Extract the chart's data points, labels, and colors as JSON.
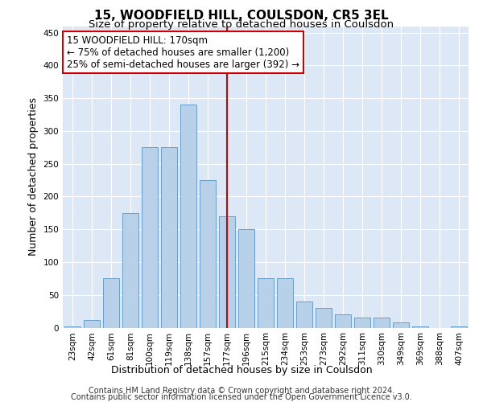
{
  "title": "15, WOODFIELD HILL, COULSDON, CR5 3EL",
  "subtitle": "Size of property relative to detached houses in Coulsdon",
  "xlabel": "Distribution of detached houses by size in Coulsdon",
  "ylabel": "Number of detached properties",
  "categories": [
    "23sqm",
    "42sqm",
    "61sqm",
    "81sqm",
    "100sqm",
    "119sqm",
    "138sqm",
    "157sqm",
    "177sqm",
    "196sqm",
    "215sqm",
    "234sqm",
    "253sqm",
    "273sqm",
    "292sqm",
    "311sqm",
    "330sqm",
    "349sqm",
    "369sqm",
    "388sqm",
    "407sqm"
  ],
  "values": [
    2,
    12,
    75,
    175,
    275,
    275,
    340,
    225,
    170,
    150,
    75,
    75,
    40,
    30,
    20,
    15,
    15,
    8,
    2,
    0,
    2
  ],
  "bar_color": "#b8d0e8",
  "bar_edge_color": "#6a9fc8",
  "vline_x_idx": 8,
  "vline_color": "#cc0000",
  "annotation_line1": "15 WOODFIELD HILL: 170sqm",
  "annotation_line2": "← 75% of detached houses are smaller (1,200)",
  "annotation_line3": "25% of semi-detached houses are larger (392) →",
  "annotation_box_color": "#ffffff",
  "annotation_box_edge": "#cc0000",
  "ylim": [
    0,
    460
  ],
  "yticks": [
    0,
    50,
    100,
    150,
    200,
    250,
    300,
    350,
    400,
    450
  ],
  "bg_color": "#dce8f5",
  "footer_line1": "Contains HM Land Registry data © Crown copyright and database right 2024.",
  "footer_line2": "Contains public sector information licensed under the Open Government Licence v3.0.",
  "title_fontsize": 11,
  "subtitle_fontsize": 9.5,
  "axis_label_fontsize": 9,
  "tick_fontsize": 7.5,
  "annotation_fontsize": 8.5,
  "footer_fontsize": 7
}
